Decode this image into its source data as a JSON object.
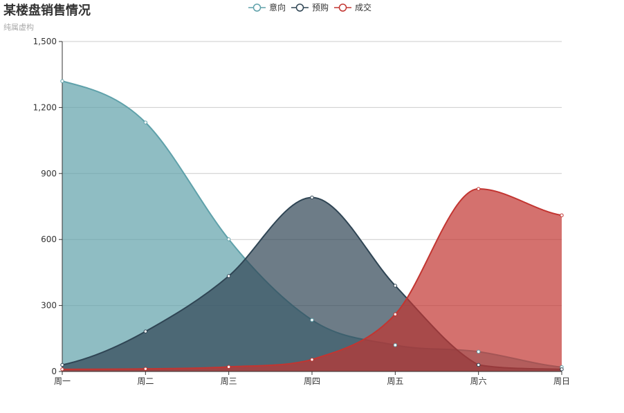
{
  "colors": {
    "intent": "#5fa1aa",
    "presale": "#2f4554",
    "deal": "#c23531",
    "grid": "#cccccc",
    "axis": "#333333"
  },
  "chart_data": {
    "type": "area",
    "title": "某楼盘销售情况",
    "subtitle": "纯属虚构",
    "categories": [
      "周一",
      "周二",
      "周三",
      "周四",
      "周五",
      "周六",
      "周日"
    ],
    "ylim": [
      0,
      1500
    ],
    "yticks": [
      "0",
      "300",
      "600",
      "900",
      "1,200",
      "1,500"
    ],
    "ytick_values": [
      0,
      300,
      600,
      900,
      1200,
      1500
    ],
    "grid": true,
    "legend_position": "top-center",
    "series": [
      {
        "name": "意向",
        "color_key": "intent",
        "values": [
          1320,
          1132,
          601,
          234,
          120,
          90,
          20
        ]
      },
      {
        "name": "预购",
        "color_key": "presale",
        "values": [
          30,
          182,
          434,
          791,
          390,
          30,
          10
        ]
      },
      {
        "name": "成交",
        "color_key": "deal",
        "values": [
          10,
          12,
          21,
          54,
          260,
          830,
          710
        ]
      }
    ]
  }
}
